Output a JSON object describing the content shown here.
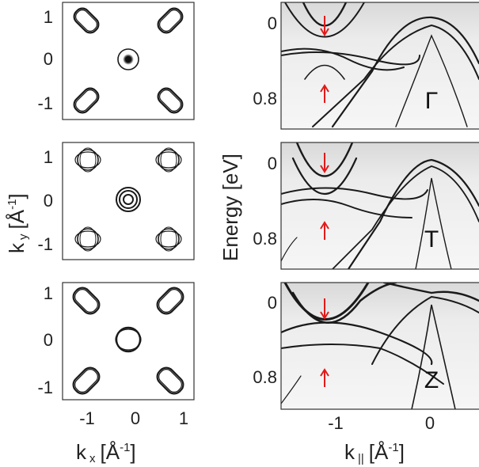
{
  "chart_data": [
    {
      "type": "contour",
      "panel": "fermi-surface-1",
      "xlabel": "k x [Å-1]",
      "ylabel": "k y [Å-1]",
      "xlim": [
        -1.2,
        1.2
      ],
      "ylim": [
        -1.2,
        1.2
      ],
      "x_ticks": [
        "-1",
        "0",
        "1"
      ],
      "y_ticks": [
        "-1",
        "0",
        "1"
      ],
      "pockets": {
        "corner": "elongated",
        "center": "double-ring"
      }
    },
    {
      "type": "contour",
      "panel": "fermi-surface-2",
      "xlim": [
        -1.2,
        1.2
      ],
      "ylim": [
        -1.2,
        1.2
      ],
      "x_ticks": [
        "-1",
        "0",
        "1"
      ],
      "y_ticks": [
        "-1",
        "0",
        "1"
      ],
      "pockets": {
        "corner": "round",
        "center": "triple-ring"
      }
    },
    {
      "type": "contour",
      "panel": "fermi-surface-3",
      "xlim": [
        -1.2,
        1.2
      ],
      "ylim": [
        -1.2,
        1.2
      ],
      "x_ticks": [
        "-1",
        "0",
        "1"
      ],
      "y_ticks": [
        "-1",
        "0",
        "1"
      ],
      "pockets": {
        "corner": "elongated",
        "center": "single-ring"
      }
    },
    {
      "type": "band-structure",
      "panel": "arpes-gamma",
      "label": "Γ",
      "ylabel": "Energy [eV]",
      "xlim": [
        -1.7,
        0.45
      ],
      "ylim": [
        -0.08,
        0.95
      ],
      "y_ticks": [
        "0",
        "0.8"
      ]
    },
    {
      "type": "band-structure",
      "panel": "arpes-t",
      "label": "T",
      "xlim": [
        -1.7,
        0.45
      ],
      "ylim": [
        -0.08,
        0.95
      ],
      "y_ticks": [
        "0",
        "0.8"
      ]
    },
    {
      "type": "band-structure",
      "panel": "arpes-z",
      "label": "Z",
      "xlabel": "k || [Å-1]",
      "xlim": [
        -1.7,
        0.45
      ],
      "ylim": [
        -0.08,
        0.95
      ],
      "x_ticks": [
        "-1",
        "0"
      ],
      "y_ticks": [
        "0",
        "0.8"
      ]
    }
  ],
  "labels": {
    "kx_main": "k",
    "kx_sub": "x",
    "kx_unit": "[Å",
    "kx_exp": "-1",
    "kx_close": "]",
    "ky_main": "k",
    "ky_sub": "y",
    "ky_unit": "[Å",
    "ky_exp": "-1",
    "ky_close": "]",
    "kpar_main": "k",
    "kpar_sub": "||",
    "kpar_unit": "[Å",
    "kpar_exp": "-1",
    "kpar_close": "]",
    "energy": "Energy [eV]",
    "panel_gamma": "Γ",
    "panel_t": "T",
    "panel_z": "Z"
  },
  "ticks": {
    "fs_x": [
      "-1",
      "0",
      "1"
    ],
    "fs_y1": [
      "1",
      "0",
      "-1"
    ],
    "fs_y2": [
      "1",
      "0",
      "-1"
    ],
    "fs_y3": [
      "1",
      "0",
      "-1"
    ],
    "e_y1": [
      "0",
      "0.8"
    ],
    "e_y2": [
      "0",
      "0.8"
    ],
    "e_y3": [
      "0",
      "0.8"
    ],
    "e_x": [
      "-1",
      "0"
    ]
  },
  "colors": {
    "arrow": "#e21a1a",
    "line": "#1a1a1a",
    "bg_arpes": "#f2f2f2"
  }
}
